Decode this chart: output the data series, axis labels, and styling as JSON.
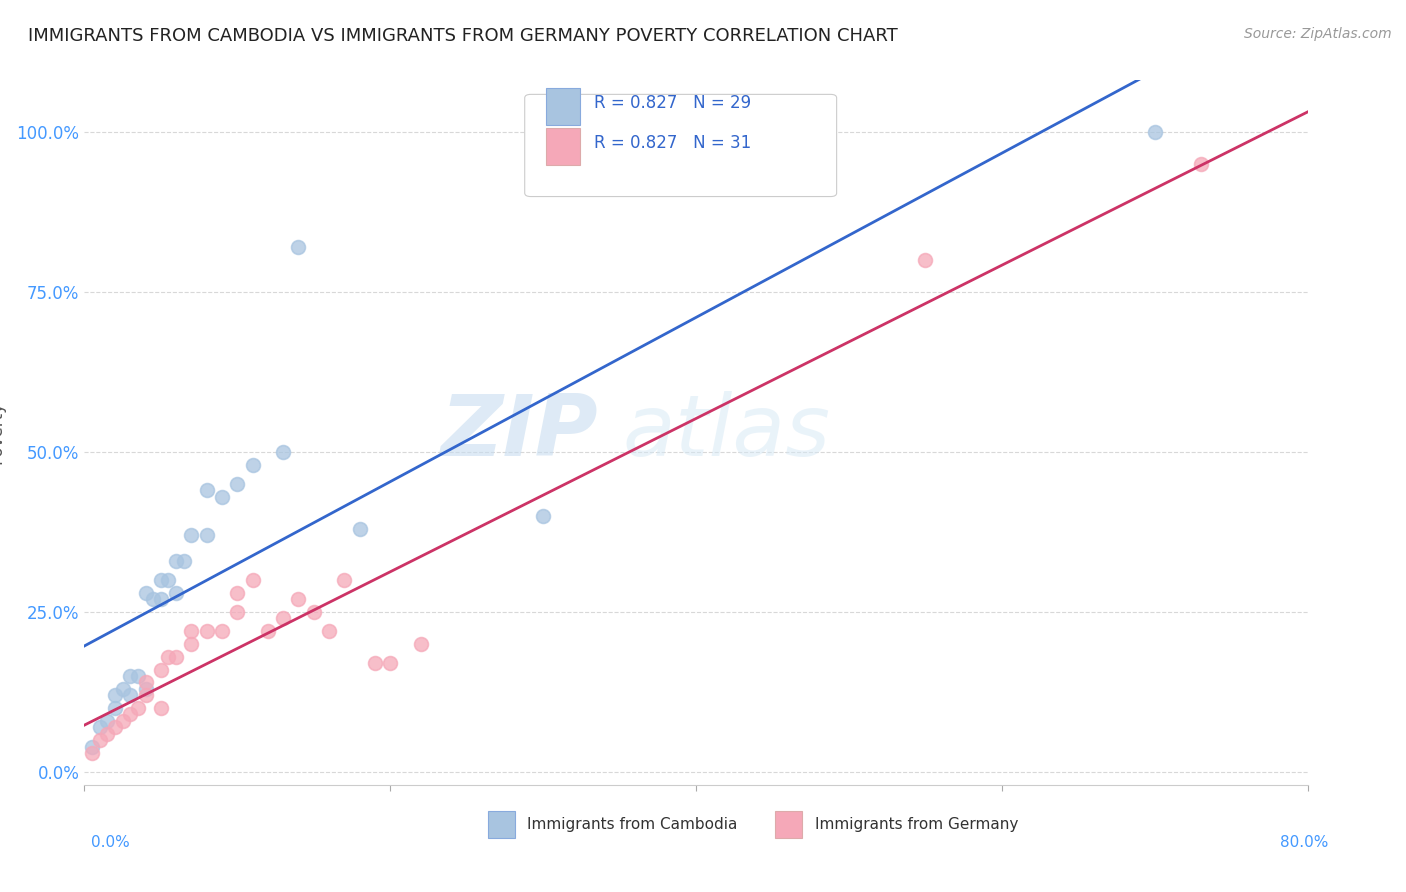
{
  "title": "IMMIGRANTS FROM CAMBODIA VS IMMIGRANTS FROM GERMANY POVERTY CORRELATION CHART",
  "source": "Source: ZipAtlas.com",
  "ylabel": "Poverty",
  "ytick_labels": [
    "0.0%",
    "25.0%",
    "50.0%",
    "75.0%",
    "100.0%"
  ],
  "ytick_values": [
    0.0,
    0.25,
    0.5,
    0.75,
    1.0
  ],
  "xlim": [
    0.0,
    0.8
  ],
  "ylim": [
    -0.02,
    1.08
  ],
  "watermark_zip": "ZIP",
  "watermark_atlas": "atlas",
  "legend_cambodia_r": "R = 0.827",
  "legend_cambodia_n": "N = 29",
  "legend_germany_r": "R = 0.827",
  "legend_germany_n": "N = 31",
  "cambodia_color": "#a8c4e0",
  "germany_color": "#f5a8b8",
  "cambodia_line_color": "#3366cc",
  "germany_line_color": "#cc3366",
  "cambodia_scatter_x": [
    0.005,
    0.01,
    0.015,
    0.02,
    0.02,
    0.025,
    0.03,
    0.03,
    0.035,
    0.04,
    0.04,
    0.045,
    0.05,
    0.05,
    0.055,
    0.06,
    0.06,
    0.065,
    0.07,
    0.08,
    0.08,
    0.09,
    0.1,
    0.11,
    0.13,
    0.14,
    0.18,
    0.3,
    0.7
  ],
  "cambodia_scatter_y": [
    0.04,
    0.07,
    0.08,
    0.1,
    0.12,
    0.13,
    0.12,
    0.15,
    0.15,
    0.13,
    0.28,
    0.27,
    0.27,
    0.3,
    0.3,
    0.28,
    0.33,
    0.33,
    0.37,
    0.37,
    0.44,
    0.43,
    0.45,
    0.48,
    0.5,
    0.82,
    0.38,
    0.4,
    1.0
  ],
  "germany_scatter_x": [
    0.005,
    0.01,
    0.015,
    0.02,
    0.025,
    0.03,
    0.035,
    0.04,
    0.04,
    0.05,
    0.05,
    0.055,
    0.06,
    0.07,
    0.07,
    0.08,
    0.09,
    0.1,
    0.1,
    0.11,
    0.12,
    0.13,
    0.14,
    0.15,
    0.16,
    0.17,
    0.19,
    0.2,
    0.22,
    0.55,
    0.73
  ],
  "germany_scatter_y": [
    0.03,
    0.05,
    0.06,
    0.07,
    0.08,
    0.09,
    0.1,
    0.12,
    0.14,
    0.1,
    0.16,
    0.18,
    0.18,
    0.2,
    0.22,
    0.22,
    0.22,
    0.25,
    0.28,
    0.3,
    0.22,
    0.24,
    0.27,
    0.25,
    0.22,
    0.3,
    0.17,
    0.17,
    0.2,
    0.8,
    0.95
  ],
  "background_color": "#ffffff",
  "grid_color": "#d8d8d8",
  "title_fontsize": 13,
  "tick_color": "#4499ff",
  "ylabel_color": "#555555",
  "legend_text_color": "#3366cc"
}
